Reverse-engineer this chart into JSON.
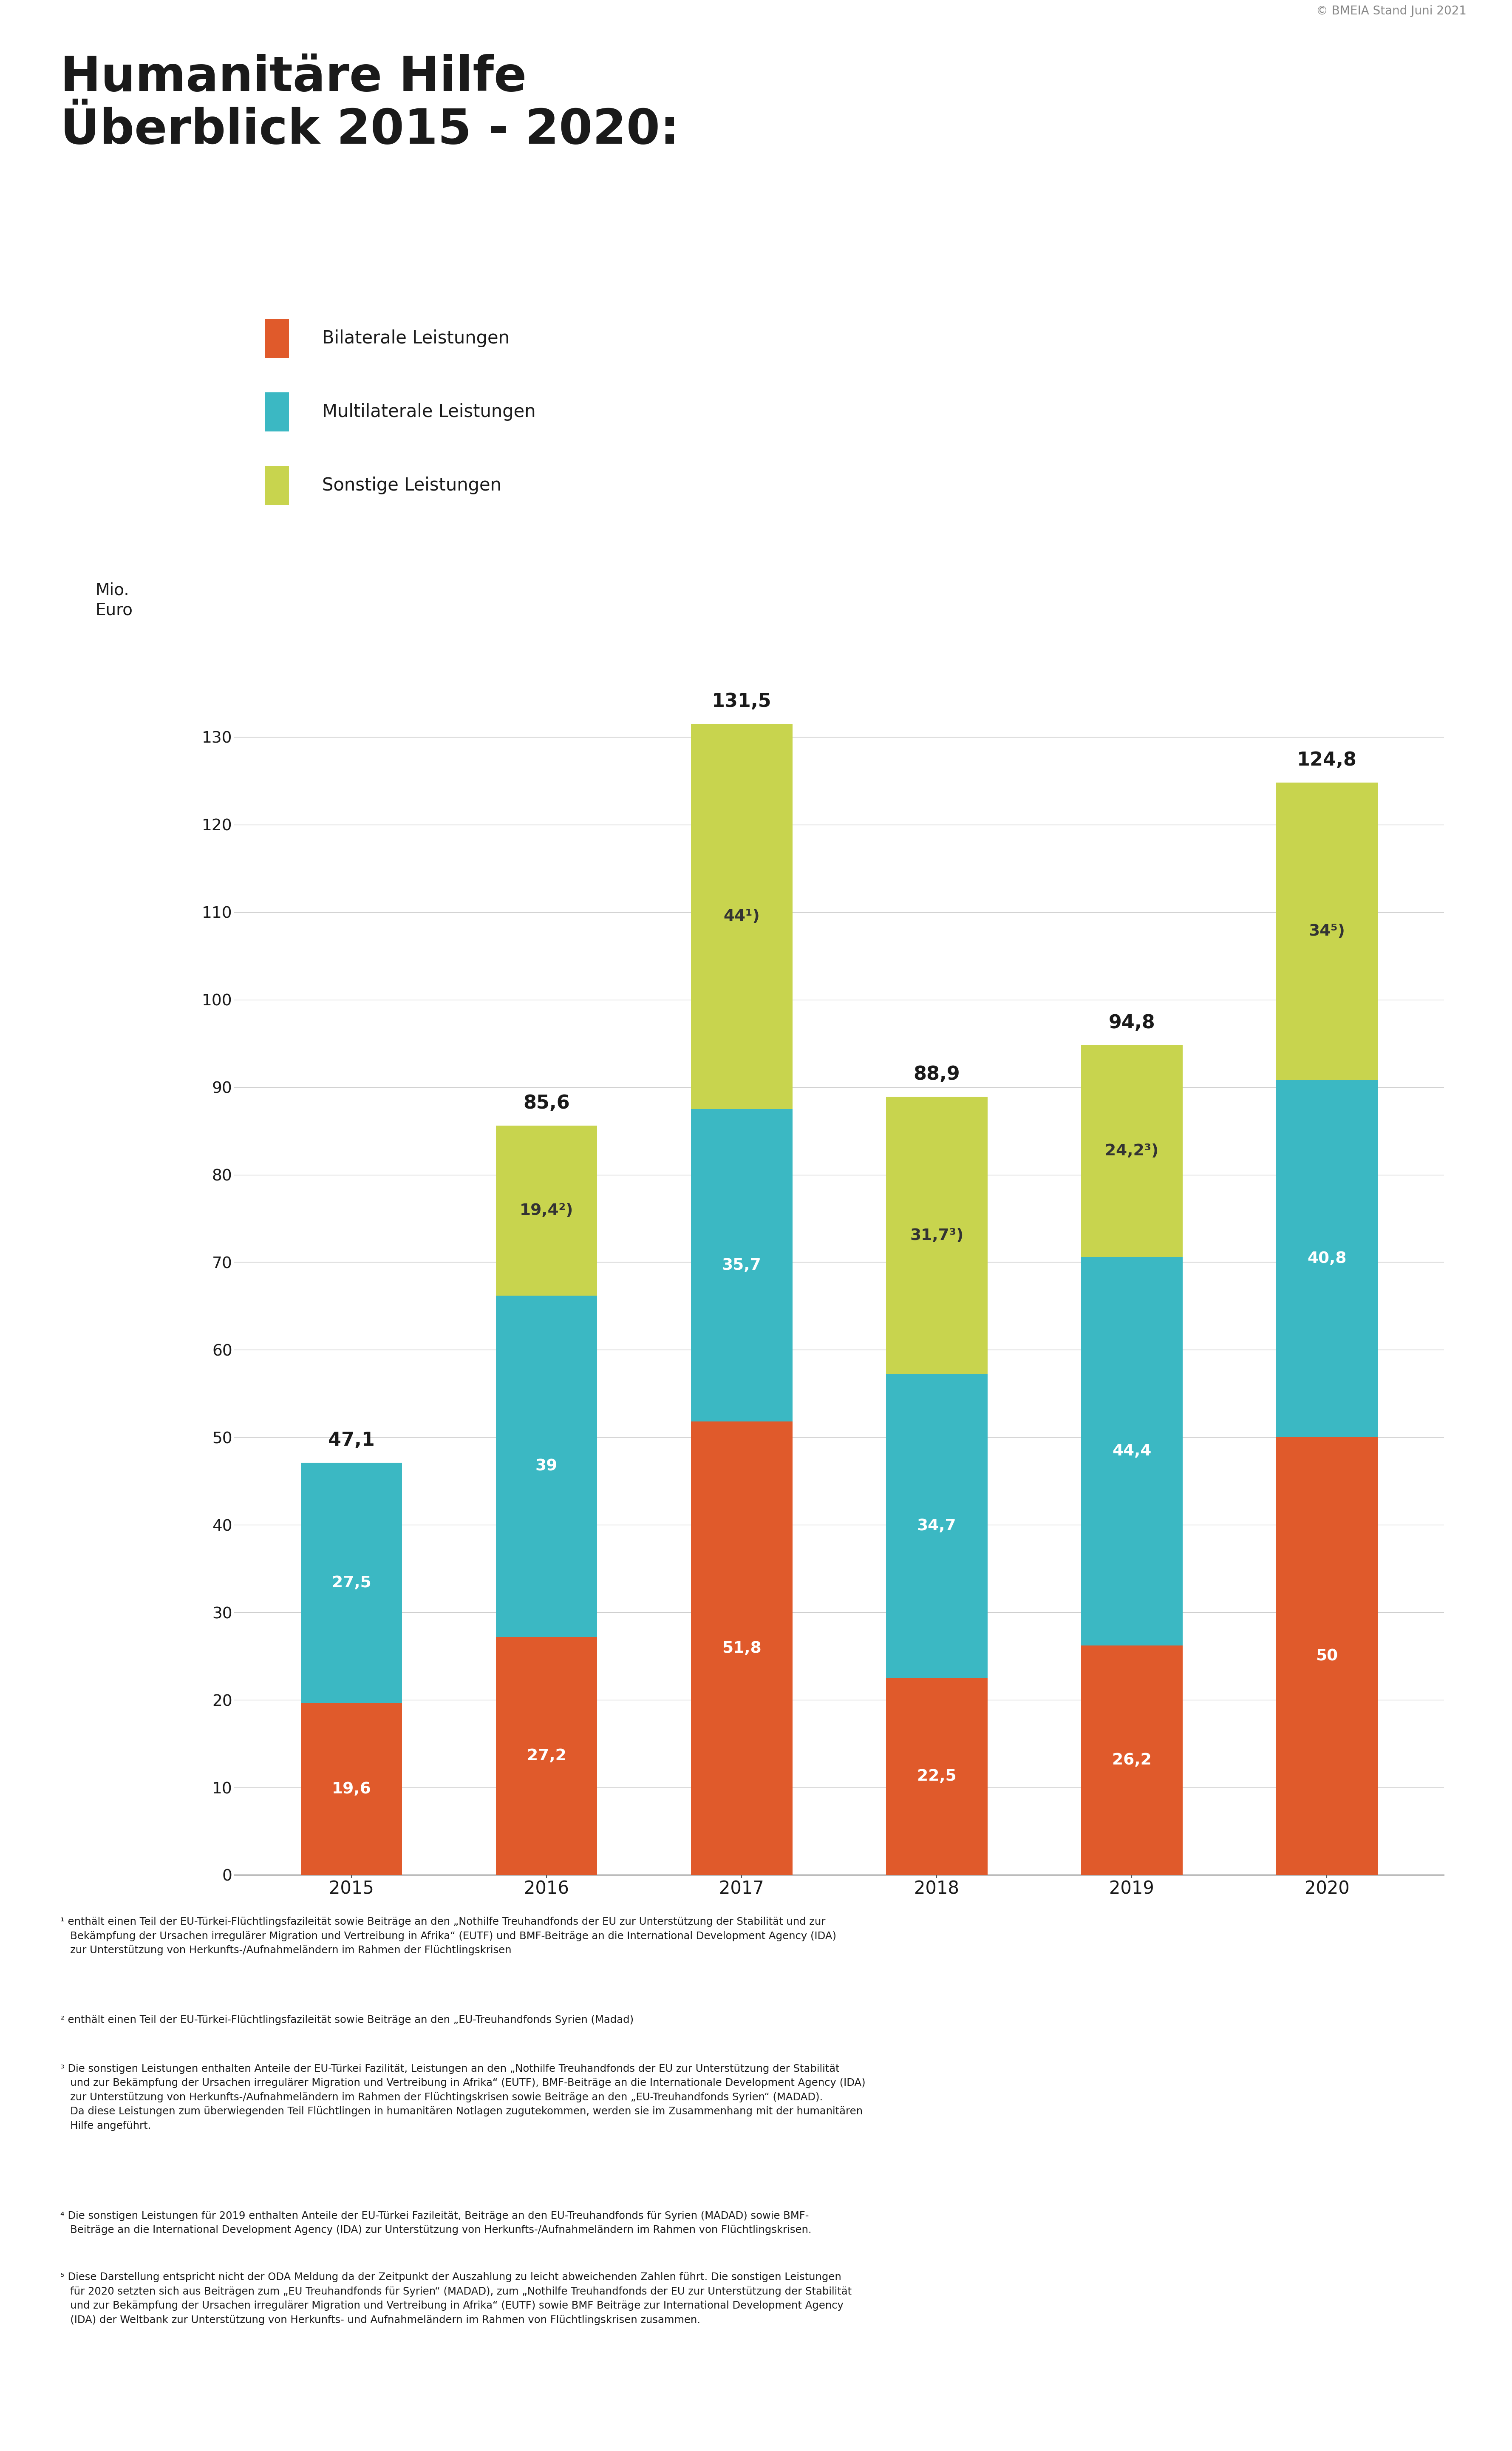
{
  "years": [
    "2015",
    "2016",
    "2017",
    "2018",
    "2019",
    "2020"
  ],
  "bilateral": [
    19.6,
    27.2,
    51.8,
    22.5,
    26.2,
    50.0
  ],
  "multilateral": [
    27.5,
    39.0,
    35.7,
    34.7,
    44.4,
    40.8
  ],
  "sonstige": [
    0.0,
    19.4,
    44.0,
    31.7,
    24.2,
    34.0
  ],
  "bilateral_labels": [
    "19,6",
    "27,2",
    "51,8",
    "22,5",
    "26,2",
    "50"
  ],
  "multilateral_labels": [
    "27,5",
    "39",
    "35,7",
    "34,7",
    "44,4",
    "40,8"
  ],
  "sonstige_labels": [
    "",
    "19,4²)",
    "44¹)",
    "31,7³)",
    "24,2³)",
    "34⁵)"
  ],
  "total_labels": [
    "47,1",
    "85,6",
    "131,5",
    "88,9",
    "94,8",
    "124,8"
  ],
  "color_bilateral": "#E05A2B",
  "color_multilateral": "#3BB8C3",
  "color_sonstige": "#C8D44E",
  "legend_bilateral": "Bilaterale Leistungen",
  "legend_multilateral": "Multilaterale Leistungen",
  "legend_sonstige": "Sonstige Leistungen",
  "title_line1": "Humanitäre Hilfe",
  "title_line2": "Überblick 2015 - 2020:",
  "ylabel_line1": "Mio.",
  "ylabel_line2": "Euro",
  "copyright": "© BMEIA Stand Juni 2021",
  "ylim": [
    0,
    140
  ],
  "yticks": [
    0,
    10,
    20,
    30,
    40,
    50,
    60,
    70,
    80,
    90,
    100,
    110,
    120,
    130
  ],
  "footnote1": "¹ enthält einen Teil der EU-Türkei-Flüchtlingsfazileität sowie Beiträge an den „Nothilfe Treuhandfonds der EU zur Unterstützung der Stabilität und zur\n   Bekämpfung der Ursachen irregulärer Migration und Vertreibung in Afrika“ (EUTF) und BMF-Beiträge an die International Development Agency (IDA)\n   zur Unterstützung von Herkunfts-/Aufnahmeländern im Rahmen der Flüchtlingskrisen",
  "footnote2": "² enthält einen Teil der EU-Türkei-Flüchtlingsfazileität sowie Beiträge an den „EU-Treuhandfonds Syrien (Madad)",
  "footnote3": "³ Die sonstigen Leistungen enthalten Anteile der EU-Türkei Fazilität, Leistungen an den „Nothilfe Treuhandfonds der EU zur Unterstützung der Stabilität\n   und zur Bekämpfung der Ursachen irregulärer Migration und Vertreibung in Afrika“ (EUTF), BMF-Beiträge an die Internationale Development Agency (IDA)\n   zur Unterstützung von Herkunfts-/Aufnahmeländern im Rahmen der Flüchtingskrisen sowie Beiträge an den „EU-Treuhandfonds Syrien“ (MADAD).\n   Da diese Leistungen zum überwiegenden Teil Flüchtlingen in humanitären Notlagen zugutekommen, werden sie im Zusammenhang mit der humanitären\n   Hilfe angeführt.",
  "footnote4": "⁴ Die sonstigen Leistungen für 2019 enthalten Anteile der EU-Türkei Fazileität, Beiträge an den EU-Treuhandfonds für Syrien (MADAD) sowie BMF-\n   Beiträge an die International Development Agency (IDA) zur Unterstützung von Herkunfts-/Aufnahmeländern im Rahmen von Flüchtlingskrisen.",
  "footnote5": "⁵ Diese Darstellung entspricht nicht der ODA Meldung da der Zeitpunkt der Auszahlung zu leicht abweichenden Zahlen führt. Die sonstigen Leistungen\n   für 2020 setzten sich aus Beiträgen zum „EU Treuhandfonds für Syrien“ (MADAD), zum „Nothilfe Treuhandfonds der EU zur Unterstützung der Stabilität\n   und zur Bekämpfung der Ursachen irregulärer Migration und Vertreibung in Afrika“ (EUTF) sowie BMF Beiträge zur International Development Agency\n   (IDA) der Weltbank zur Unterstützung von Herkunfts- und Aufnahmeländern im Rahmen von Flüchtlingskrisen zusammen."
}
